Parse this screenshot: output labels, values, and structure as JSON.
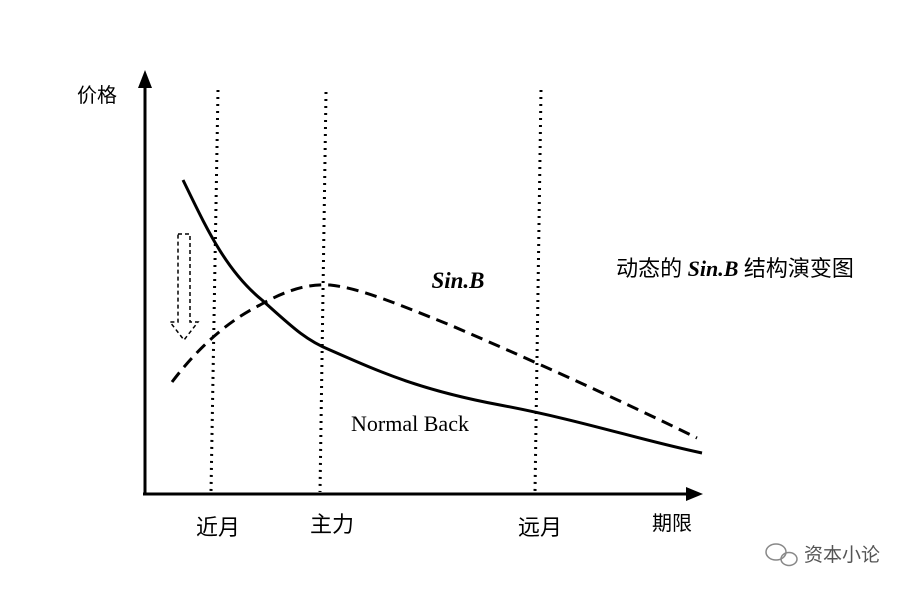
{
  "axes": {
    "y_label": "价格",
    "x_label": "期限"
  },
  "markers": [
    "近月",
    "主力",
    "远月"
  ],
  "curves": {
    "dashed": "Sin.B",
    "solid": "Normal Back"
  },
  "caption": {
    "prefix": "动态的",
    "emphasis": "Sin.B",
    "suffix": "结构演变图"
  },
  "watermark": "资本小论"
}
